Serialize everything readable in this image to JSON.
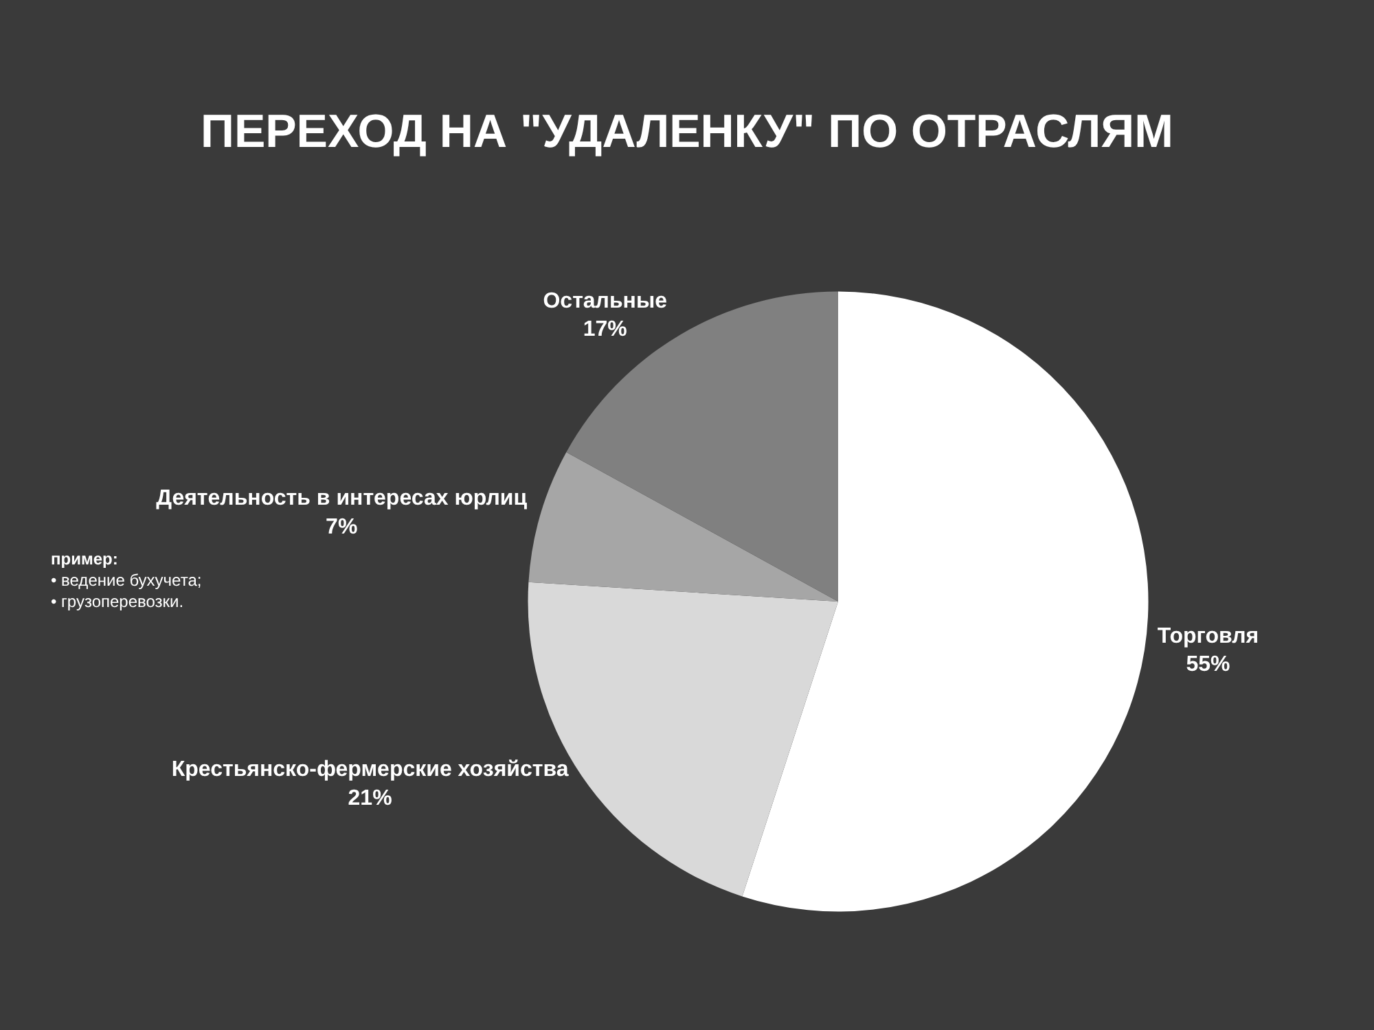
{
  "chart_data": {
    "type": "pie",
    "title": "ПЕРЕХОД НА \"УДАЛЕНКУ\" ПО ОТРАСЛЯМ",
    "categories": [
      "Торговля",
      "Крестьянско-фермерские хозяйства",
      "Деятельность в интересах юрлиц",
      "Остальные"
    ],
    "values": [
      55,
      21,
      7,
      17
    ],
    "value_labels": [
      "55%",
      "21%",
      "7%",
      "17%"
    ],
    "colors": [
      "#ffffff",
      "#d9d9d9",
      "#a6a6a6",
      "#808080"
    ],
    "annotations": [
      "пример:\n• ведение бухучета;\n• грузоперевозки."
    ]
  }
}
